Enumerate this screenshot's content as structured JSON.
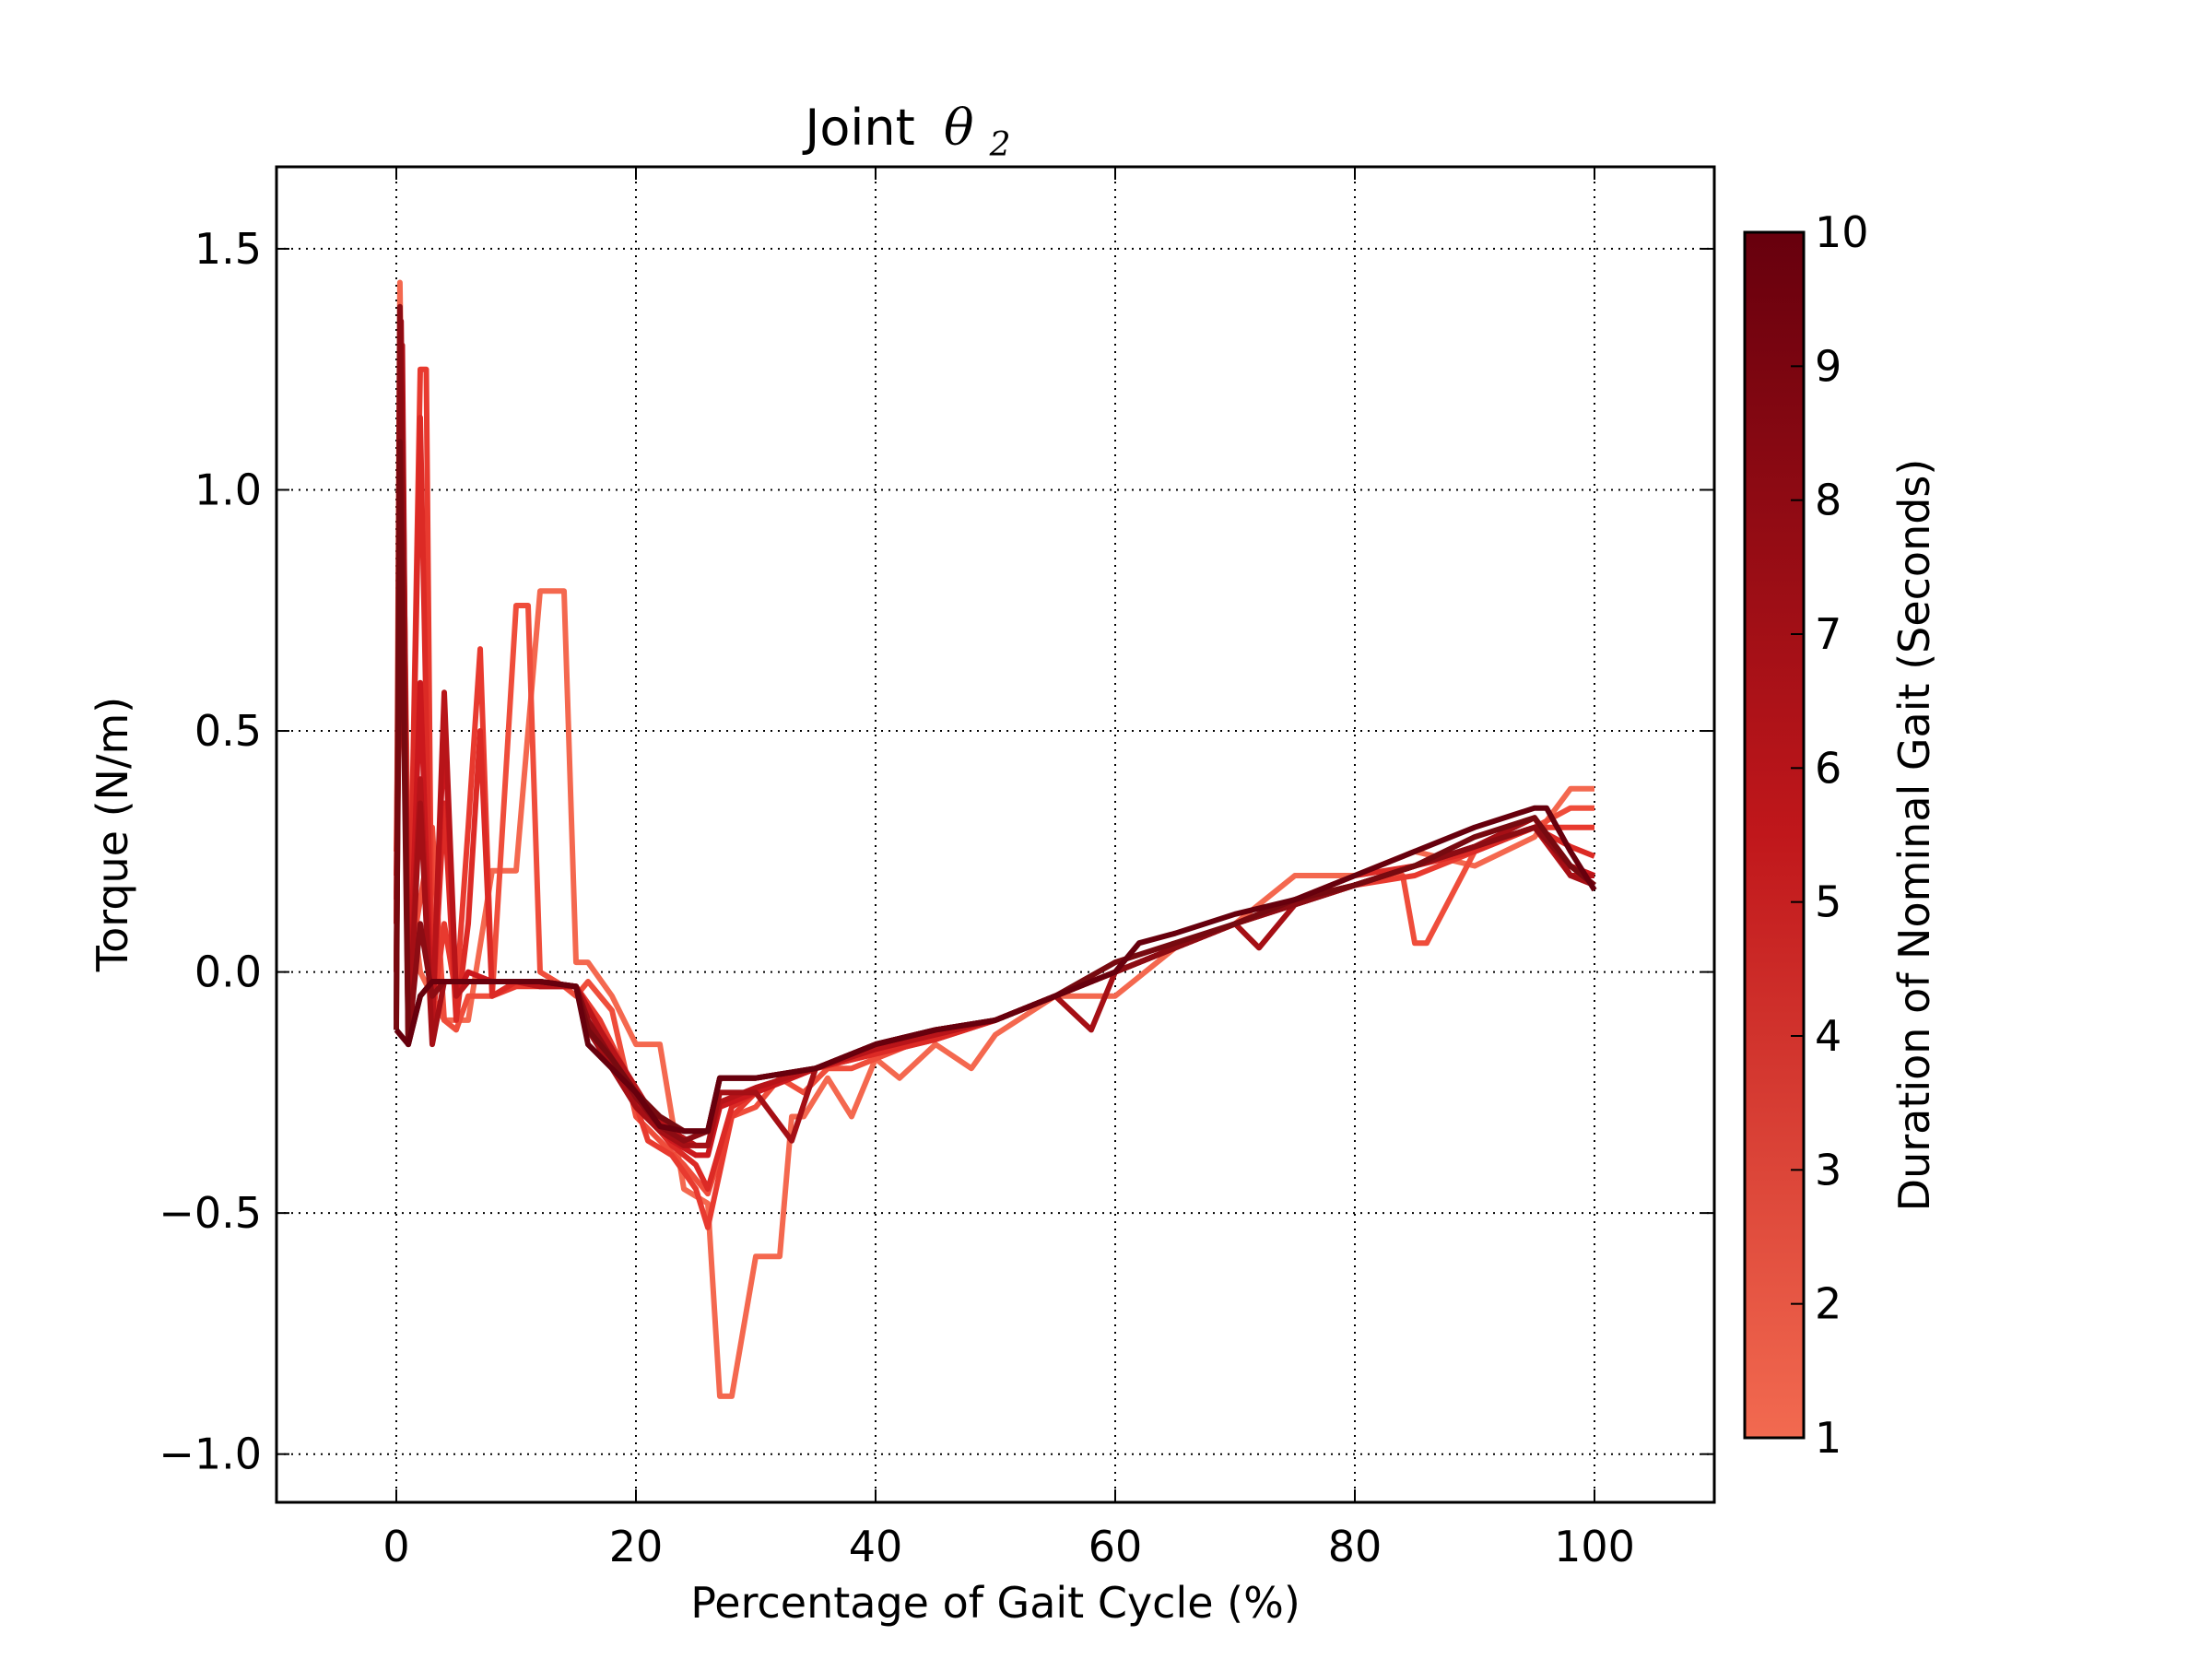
{
  "chart_data": {
    "type": "line",
    "title_prefix": "Joint",
    "title_math_symbol": "θ",
    "title_math_subscript": "2",
    "xlabel": "Percentage of Gait Cycle (%)",
    "ylabel": "Torque (N/m)",
    "xlim": [
      -10,
      110
    ],
    "ylim": [
      -1.1,
      1.67
    ],
    "x_ticks": [
      0,
      20,
      40,
      60,
      80,
      100
    ],
    "x_tick_labels": [
      "0",
      "20",
      "40",
      "60",
      "80",
      "100"
    ],
    "y_ticks": [
      -1.0,
      -0.5,
      0.0,
      0.5,
      1.0,
      1.5
    ],
    "y_tick_labels": [
      "−1.0",
      "−0.5",
      "0.0",
      "0.5",
      "1.0",
      "1.5"
    ],
    "grid": true,
    "colorbar": {
      "label": "Duration of Nominal Gait (Seconds)",
      "range": [
        1,
        10
      ],
      "ticks": [
        1,
        2,
        3,
        4,
        5,
        6,
        7,
        8,
        9,
        10
      ],
      "tick_labels": [
        "1",
        "2",
        "3",
        "4",
        "5",
        "6",
        "7",
        "8",
        "9",
        "10"
      ],
      "color_low": "#f26a50",
      "color_high": "#67000d"
    },
    "series": [
      {
        "duration": 1,
        "color": "#f4684f",
        "x": [
          0,
          0.3,
          1,
          2,
          4,
          6,
          8,
          10,
          12,
          14,
          15,
          16,
          18,
          20,
          22,
          24,
          26,
          27,
          28,
          30,
          32,
          33,
          34,
          36,
          38,
          40,
          42,
          45,
          48,
          50,
          55,
          60,
          65,
          70,
          75,
          80,
          85,
          90,
          95,
          98,
          100
        ],
        "y": [
          0.1,
          1.43,
          0.2,
          0.0,
          -0.1,
          -0.1,
          0.21,
          0.21,
          0.79,
          0.79,
          0.02,
          0.02,
          -0.05,
          -0.15,
          -0.15,
          -0.45,
          -0.48,
          -0.88,
          -0.88,
          -0.59,
          -0.59,
          -0.3,
          -0.3,
          -0.22,
          -0.3,
          -0.18,
          -0.22,
          -0.15,
          -0.2,
          -0.13,
          -0.05,
          -0.05,
          0.05,
          0.1,
          0.2,
          0.2,
          0.25,
          0.22,
          0.28,
          0.38,
          0.38
        ]
      },
      {
        "duration": 2,
        "color": "#ef4d3b",
        "x": [
          0,
          0.5,
          1,
          2,
          3,
          4,
          5,
          6,
          8,
          10,
          11,
          12,
          14,
          15,
          16,
          18,
          20,
          22,
          24,
          26,
          28,
          30,
          32,
          34,
          36,
          38,
          40,
          45,
          50,
          55,
          60,
          65,
          70,
          75,
          80,
          84,
          85,
          86,
          90,
          95,
          98,
          100
        ],
        "y": [
          0.25,
          1.2,
          0.0,
          0.15,
          0.3,
          -0.1,
          -0.12,
          -0.05,
          -0.05,
          0.76,
          0.76,
          0.0,
          -0.03,
          -0.05,
          -0.02,
          -0.08,
          -0.3,
          -0.35,
          -0.4,
          -0.46,
          -0.3,
          -0.28,
          -0.22,
          -0.25,
          -0.2,
          -0.2,
          -0.18,
          -0.13,
          -0.1,
          -0.05,
          0.0,
          0.05,
          0.1,
          0.15,
          0.18,
          0.2,
          0.06,
          0.06,
          0.25,
          0.3,
          0.34,
          0.34
        ]
      },
      {
        "duration": 3,
        "color": "#e83a2f",
        "x": [
          0,
          0.5,
          1,
          2,
          2.5,
          3,
          4,
          5,
          6,
          7,
          8,
          10,
          12,
          15,
          17,
          19,
          21,
          23,
          25,
          26,
          28,
          30,
          35,
          40,
          45,
          50,
          55,
          60,
          65,
          70,
          75,
          80,
          85,
          90,
          95,
          98,
          100
        ],
        "y": [
          0.2,
          1.0,
          -0.1,
          1.25,
          1.25,
          -0.1,
          0.1,
          -0.05,
          0.3,
          0.67,
          -0.05,
          -0.03,
          -0.03,
          -0.03,
          -0.1,
          -0.2,
          -0.35,
          -0.38,
          -0.45,
          -0.53,
          -0.3,
          -0.25,
          -0.2,
          -0.17,
          -0.14,
          -0.1,
          -0.05,
          0.0,
          0.05,
          0.1,
          0.15,
          0.18,
          0.2,
          0.25,
          0.3,
          0.3,
          0.3
        ]
      },
      {
        "duration": 4,
        "color": "#dc2a25",
        "x": [
          0,
          0.5,
          1,
          2,
          3,
          4,
          5,
          6,
          7,
          8,
          10,
          12,
          15,
          17,
          19,
          21,
          23,
          25,
          26,
          28,
          30,
          35,
          40,
          45,
          50,
          55,
          60,
          65,
          70,
          75,
          80,
          85,
          90,
          95,
          98,
          100
        ],
        "y": [
          0.15,
          1.1,
          -0.1,
          1.15,
          -0.1,
          0.35,
          -0.1,
          0.1,
          0.5,
          -0.05,
          -0.02,
          -0.02,
          -0.03,
          -0.12,
          -0.2,
          -0.3,
          -0.36,
          -0.4,
          -0.45,
          -0.28,
          -0.25,
          -0.2,
          -0.17,
          -0.14,
          -0.1,
          -0.05,
          0.0,
          0.05,
          0.1,
          0.15,
          0.2,
          0.22,
          0.25,
          0.3,
          0.26,
          0.24
        ]
      },
      {
        "duration": 5,
        "color": "#cb181d",
        "x": [
          0,
          0.5,
          1,
          2,
          3,
          4,
          5,
          6,
          8,
          10,
          12,
          15,
          17,
          19,
          21,
          23,
          25,
          26,
          27,
          30,
          35,
          40,
          45,
          50,
          55,
          60,
          65,
          70,
          75,
          80,
          85,
          90,
          95,
          98,
          100
        ],
        "y": [
          0.1,
          1.2,
          -0.12,
          0.6,
          -0.12,
          0.52,
          -0.05,
          0.0,
          -0.02,
          -0.02,
          -0.03,
          -0.03,
          -0.12,
          -0.22,
          -0.3,
          -0.35,
          -0.38,
          -0.38,
          -0.28,
          -0.25,
          -0.2,
          -0.16,
          -0.13,
          -0.1,
          -0.05,
          0.0,
          0.05,
          0.1,
          0.14,
          0.18,
          0.22,
          0.26,
          0.3,
          0.22,
          0.2
        ]
      },
      {
        "duration": 6,
        "color": "#b81419",
        "x": [
          0,
          0.5,
          1,
          2,
          3,
          4,
          5,
          6,
          8,
          10,
          12,
          15,
          17,
          19,
          21,
          23,
          25,
          26,
          27,
          30,
          35,
          40,
          45,
          50,
          55,
          60,
          65,
          70,
          75,
          80,
          85,
          90,
          95,
          98,
          100
        ],
        "y": [
          0.0,
          1.3,
          -0.12,
          0.4,
          -0.12,
          0.58,
          -0.05,
          -0.02,
          -0.02,
          -0.02,
          -0.03,
          -0.03,
          -0.12,
          -0.2,
          -0.28,
          -0.33,
          -0.36,
          -0.36,
          -0.27,
          -0.24,
          -0.2,
          -0.16,
          -0.13,
          -0.1,
          -0.05,
          0.0,
          0.05,
          0.1,
          0.14,
          0.18,
          0.22,
          0.26,
          0.3,
          0.2,
          0.2
        ]
      },
      {
        "duration": 7,
        "color": "#a50f15",
        "x": [
          0,
          0.4,
          1,
          2,
          3,
          4,
          5,
          8,
          10,
          12,
          15,
          16,
          18,
          20,
          22,
          24,
          26,
          27,
          30,
          33,
          35,
          40,
          45,
          50,
          55,
          58,
          60,
          65,
          70,
          72,
          75,
          80,
          85,
          90,
          95,
          98,
          100
        ],
        "y": [
          0.0,
          1.35,
          -0.15,
          0.35,
          -0.15,
          -0.02,
          -0.02,
          -0.02,
          -0.02,
          -0.02,
          -0.03,
          -0.12,
          -0.2,
          -0.28,
          -0.33,
          -0.36,
          -0.36,
          -0.25,
          -0.25,
          -0.35,
          -0.2,
          -0.15,
          -0.12,
          -0.1,
          -0.05,
          -0.12,
          0.0,
          0.05,
          0.1,
          0.05,
          0.14,
          0.18,
          0.22,
          0.26,
          0.32,
          0.2,
          0.18
        ]
      },
      {
        "duration": 8,
        "color": "#8c0c13",
        "x": [
          0,
          0.3,
          1,
          2,
          3,
          4,
          6,
          8,
          10,
          12,
          15,
          16,
          18,
          20,
          22,
          24,
          26,
          27,
          30,
          35,
          40,
          45,
          50,
          55,
          60,
          65,
          70,
          75,
          80,
          85,
          90,
          95,
          98,
          100
        ],
        "y": [
          -0.1,
          1.38,
          -0.15,
          0.1,
          -0.05,
          -0.02,
          -0.02,
          -0.02,
          -0.02,
          -0.02,
          -0.03,
          -0.1,
          -0.18,
          -0.26,
          -0.32,
          -0.35,
          -0.33,
          -0.22,
          -0.22,
          -0.2,
          -0.15,
          -0.12,
          -0.1,
          -0.05,
          0.0,
          0.05,
          0.1,
          0.14,
          0.18,
          0.22,
          0.26,
          0.3,
          0.22,
          0.18
        ]
      },
      {
        "duration": 9,
        "color": "#770a10",
        "x": [
          0,
          0.3,
          1,
          2,
          3,
          4,
          6,
          8,
          10,
          12,
          15,
          16,
          18,
          20,
          22,
          24,
          26,
          27,
          30,
          35,
          40,
          45,
          50,
          55,
          60,
          65,
          70,
          75,
          80,
          85,
          90,
          95,
          98,
          100
        ],
        "y": [
          -0.12,
          1.1,
          -0.15,
          -0.05,
          -0.02,
          -0.02,
          -0.02,
          -0.02,
          -0.02,
          -0.02,
          -0.03,
          -0.12,
          -0.18,
          -0.25,
          -0.3,
          -0.33,
          -0.33,
          -0.22,
          -0.22,
          -0.2,
          -0.15,
          -0.12,
          -0.1,
          -0.05,
          0.02,
          0.06,
          0.1,
          0.15,
          0.18,
          0.22,
          0.28,
          0.32,
          0.22,
          0.18
        ]
      },
      {
        "duration": 10,
        "color": "#67000d",
        "x": [
          0,
          1,
          2,
          3,
          4,
          6,
          8,
          10,
          12,
          15,
          16,
          18,
          20,
          22,
          24,
          26,
          27,
          30,
          35,
          40,
          45,
          50,
          55,
          60,
          62,
          65,
          70,
          75,
          80,
          85,
          90,
          95,
          96,
          98,
          100
        ],
        "y": [
          -0.12,
          -0.15,
          -0.05,
          -0.02,
          -0.02,
          -0.02,
          -0.02,
          -0.02,
          -0.02,
          -0.03,
          -0.15,
          -0.2,
          -0.25,
          -0.32,
          -0.33,
          -0.33,
          -0.22,
          -0.22,
          -0.2,
          -0.15,
          -0.12,
          -0.1,
          -0.05,
          0.0,
          0.06,
          0.08,
          0.12,
          0.15,
          0.2,
          0.25,
          0.3,
          0.34,
          0.34,
          0.25,
          0.17
        ]
      }
    ]
  }
}
